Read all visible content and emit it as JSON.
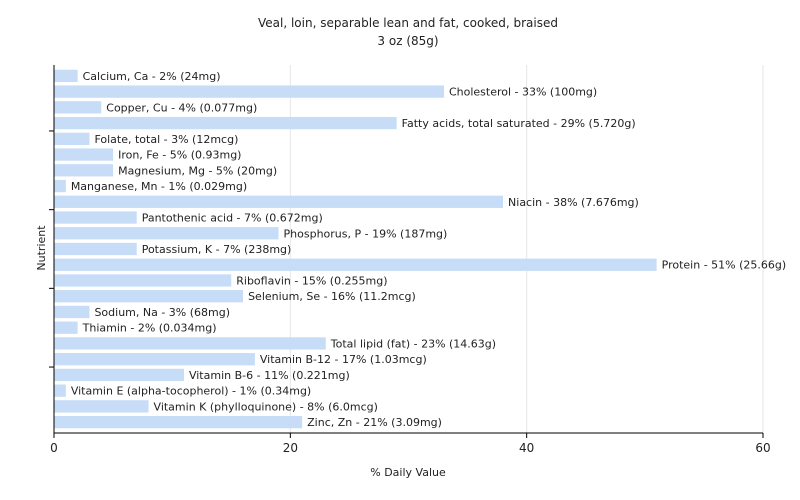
{
  "chart_data": {
    "type": "bar",
    "orientation": "horizontal",
    "title": "Veal, loin, separable lean and fat, cooked, braised",
    "subtitle": "3 oz (85g)",
    "xlabel": "% Daily Value",
    "ylabel": "Nutrient",
    "xlim": [
      0,
      60
    ],
    "xticks": [
      0,
      20,
      40,
      60
    ],
    "grid": true,
    "bar_color": "#c6dcf7",
    "categories": [
      "Calcium, Ca",
      "Cholesterol",
      "Copper, Cu",
      "Fatty acids, total saturated",
      "Folate, total",
      "Iron, Fe",
      "Magnesium, Mg",
      "Manganese, Mn",
      "Niacin",
      "Pantothenic acid",
      "Phosphorus, P",
      "Potassium, K",
      "Protein",
      "Riboflavin",
      "Selenium, Se",
      "Sodium, Na",
      "Thiamin",
      "Total lipid (fat)",
      "Vitamin B-12",
      "Vitamin B-6",
      "Vitamin E (alpha-tocopherol)",
      "Vitamin K (phylloquinone)",
      "Zinc, Zn"
    ],
    "values": [
      2,
      33,
      4,
      29,
      3,
      5,
      5,
      1,
      38,
      7,
      19,
      7,
      51,
      15,
      16,
      3,
      2,
      23,
      17,
      11,
      1,
      8,
      21
    ],
    "labels": [
      "Calcium, Ca - 2% (24mg)",
      "Cholesterol - 33% (100mg)",
      "Copper, Cu - 4% (0.077mg)",
      "Fatty acids, total saturated - 29% (5.720g)",
      "Folate, total - 3% (12mcg)",
      "Iron, Fe - 5% (0.93mg)",
      "Magnesium, Mg - 5% (20mg)",
      "Manganese, Mn - 1% (0.029mg)",
      "Niacin - 38% (7.676mg)",
      "Pantothenic acid - 7% (0.672mg)",
      "Phosphorus, P - 19% (187mg)",
      "Potassium, K - 7% (238mg)",
      "Protein - 51% (25.66g)",
      "Riboflavin - 15% (0.255mg)",
      "Selenium, Se - 16% (11.2mcg)",
      "Sodium, Na - 3% (68mg)",
      "Thiamin - 2% (0.034mg)",
      "Total lipid (fat) - 23% (14.63g)",
      "Vitamin B-12 - 17% (1.03mcg)",
      "Vitamin B-6 - 11% (0.221mg)",
      "Vitamin E (alpha-tocopherol) - 1% (0.34mg)",
      "Vitamin K (phylloquinone) - 8% (6.0mcg)",
      "Zinc, Zn - 21% (3.09mg)"
    ]
  }
}
